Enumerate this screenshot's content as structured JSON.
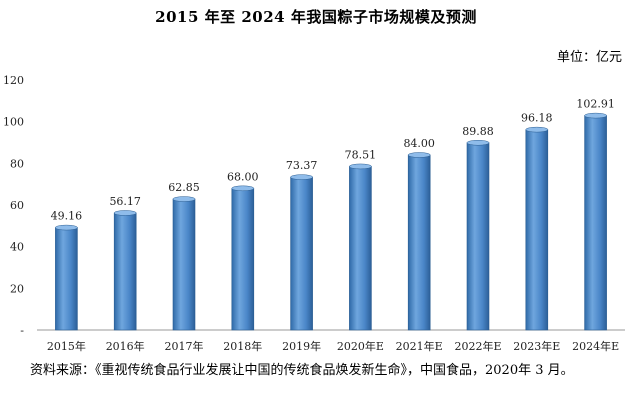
{
  "chart_data": {
    "type": "bar",
    "title": "2015 年至 2024 年我国粽子市场规模及预测",
    "unit_label": "单位：亿元",
    "categories": [
      "2015年",
      "2016年",
      "2017年",
      "2018年",
      "2019年",
      "2020年E",
      "2021年E",
      "2022年E",
      "2023年E",
      "2024年E"
    ],
    "values": [
      49.16,
      56.17,
      62.85,
      68.0,
      73.37,
      78.51,
      84.0,
      89.88,
      96.18,
      102.91
    ],
    "value_labels": [
      "49.16",
      "56.17",
      "62.85",
      "68.00",
      "73.37",
      "78.51",
      "84.00",
      "89.88",
      "96.18",
      "102.91"
    ],
    "ylim": [
      0,
      120
    ],
    "yticks": [
      0,
      20,
      40,
      60,
      80,
      100,
      120
    ],
    "ytick_labels": [
      "-",
      "20",
      "40",
      "60",
      "80",
      "100",
      "120"
    ],
    "grid": false,
    "bar_color": "#4a86c8",
    "xlabel": "",
    "ylabel": ""
  },
  "source_note": "资料来源：《重视传统食品行业发展让中国的传统食品焕发新生命》，中国食品，2020年 3 月。"
}
